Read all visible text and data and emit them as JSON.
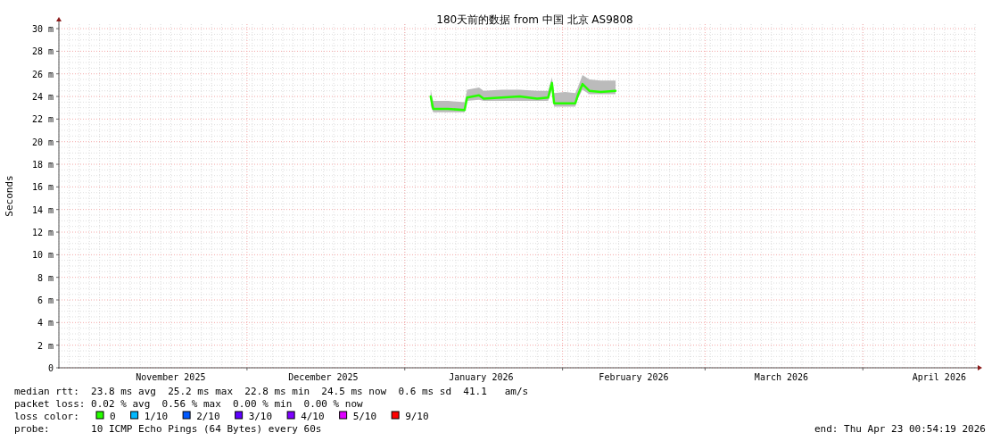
{
  "chart_data": {
    "type": "line",
    "title": "180天前的数据 from 中国 北京 AS9808",
    "ylabel": "Seconds",
    "x": [
      "2026-01-06T02:00",
      "2026-01-06T14:00",
      "2026-01-09T12:00",
      "2026-01-12T18:00",
      "2026-01-13T06:00",
      "2026-01-15T14:00",
      "2026-01-16T12:00",
      "2026-01-20T00:00",
      "2026-01-23T14:00",
      "2026-01-27T00:00",
      "2026-01-29T04:00",
      "2026-01-29T22:00",
      "2026-01-30T08:00",
      "2026-02-01T12:00",
      "2026-02-03T12:00",
      "2026-02-04T00:00",
      "2026-02-04T22:00",
      "2026-02-06T06:00",
      "2026-02-08T12:00",
      "2026-02-11T10:00"
    ],
    "series": [
      {
        "name": "0",
        "color": "#26ff00",
        "values": [
          24.0,
          22.9,
          22.9,
          22.8,
          23.9,
          24.1,
          23.8,
          23.9,
          24.0,
          23.8,
          23.9,
          25.2,
          23.4,
          23.4,
          23.4,
          24.1,
          25.1,
          24.5,
          24.4,
          24.5
        ],
        "lower": [
          23.2,
          22.6,
          22.6,
          22.6,
          23.6,
          23.7,
          23.6,
          23.6,
          23.6,
          23.6,
          23.6,
          24.6,
          23.1,
          23.1,
          23.1,
          23.8,
          24.6,
          24.2,
          24.2,
          24.2
        ],
        "upper": [
          24.6,
          23.6,
          23.6,
          23.5,
          24.6,
          24.8,
          24.5,
          24.6,
          24.6,
          24.5,
          24.5,
          25.7,
          24.3,
          24.4,
          24.3,
          24.8,
          25.9,
          25.5,
          25.4,
          25.4
        ]
      },
      {
        "name": "1/10",
        "color": "#00b8ff",
        "values": [
          null,
          null,
          null,
          null,
          null,
          null,
          null,
          null,
          null,
          null,
          null,
          null,
          null,
          null,
          null,
          null,
          null,
          null,
          null,
          null
        ]
      },
      {
        "name": "2/10",
        "color": "#0059ff",
        "values": [
          null,
          null,
          null,
          null,
          null,
          null,
          null,
          null,
          null,
          null,
          null,
          null,
          null,
          null,
          null,
          null,
          null,
          null,
          null,
          null
        ]
      },
      {
        "name": "3/10",
        "color": "#5e00ff",
        "values": [
          null,
          null,
          null,
          null,
          null,
          null,
          null,
          null,
          null,
          null,
          null,
          null,
          null,
          null,
          null,
          null,
          null,
          null,
          null,
          null
        ]
      },
      {
        "name": "4/10",
        "color": "#7e00ff",
        "values": [
          null,
          null,
          null,
          null,
          null,
          null,
          null,
          null,
          null,
          null,
          null,
          null,
          null,
          null,
          null,
          null,
          null,
          null,
          null,
          null
        ]
      },
      {
        "name": "5/10",
        "color": "#dd00ff",
        "values": [
          null,
          null,
          null,
          null,
          null,
          null,
          null,
          null,
          null,
          null,
          null,
          null,
          null,
          null,
          null,
          null,
          null,
          null,
          null,
          null
        ]
      },
      {
        "name": "9/10",
        "color": "#ff0000",
        "values": [
          null,
          null,
          null,
          null,
          null,
          null,
          null,
          null,
          null,
          null,
          null,
          null,
          null,
          null,
          null,
          null,
          null,
          null,
          null,
          null
        ]
      }
    ],
    "legend_title": "loss color:",
    "legend": "bottom",
    "xlim": [
      "2025-10-25T00:54",
      "2026-04-23T00:54"
    ],
    "xticks": [
      {
        "value": "2025-11-16",
        "label": "November 2025"
      },
      {
        "value": "2025-12-01",
        "label": null
      },
      {
        "value": "2025-12-16",
        "label": "December 2025"
      },
      {
        "value": "2026-01-01",
        "label": null
      },
      {
        "value": "2026-01-16",
        "label": "January 2026"
      },
      {
        "value": "2026-02-01",
        "label": null
      },
      {
        "value": "2026-02-15",
        "label": "February 2026"
      },
      {
        "value": "2026-03-01",
        "label": null
      },
      {
        "value": "2026-03-16",
        "label": "March 2026"
      },
      {
        "value": "2026-04-01",
        "label": null
      },
      {
        "value": "2026-04-16",
        "label": "April 2026"
      }
    ],
    "ylim": [
      0,
      30.4
    ],
    "yticks": [
      0,
      {
        "value": 2,
        "label": "2 m"
      },
      {
        "value": 4,
        "label": "4 m"
      },
      {
        "value": 6,
        "label": "6 m"
      },
      {
        "value": 8,
        "label": "8 m"
      },
      {
        "value": 10,
        "label": "10 m"
      },
      {
        "value": 12,
        "label": "12 m"
      },
      {
        "value": 14,
        "label": "14 m"
      },
      {
        "value": 16,
        "label": "16 m"
      },
      {
        "value": 18,
        "label": "18 m"
      },
      {
        "value": 20,
        "label": "20 m"
      },
      {
        "value": 22,
        "label": "22 m"
      },
      {
        "value": 24,
        "label": "24 m"
      },
      {
        "value": 26,
        "label": "26 m"
      },
      {
        "value": 28,
        "label": "28 m"
      },
      {
        "value": 30,
        "label": "30 m"
      }
    ],
    "grid": true,
    "annotations": [
      "median rtt:  23.8 ms avg  25.2 ms max  22.8 ms min  24.5 ms now  0.6 ms sd  41.1   am/s",
      "packet loss: 0.02 % avg  0.56 % max  0.00 % min  0.00 % now",
      "probe:       10 ICMP Echo Pings (64 Bytes) every 60s",
      "end: Thu Apr 23 00:54:19 2026"
    ]
  }
}
